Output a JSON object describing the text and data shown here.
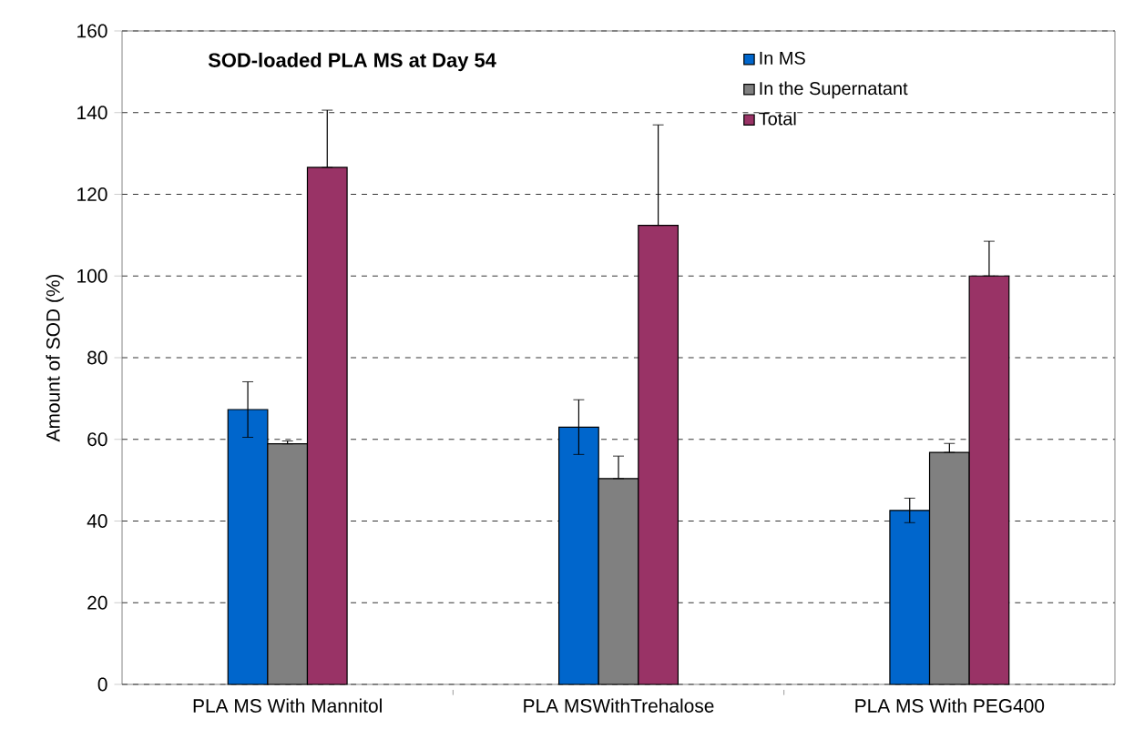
{
  "chart_data": {
    "type": "bar",
    "title": "SOD-loaded PLA MS at Day 54",
    "ylabel": "Amount of SOD (%)",
    "categories": [
      "PLA MS With Mannitol",
      "PLA MSWithTrehalose",
      "PLA MS With PEG400"
    ],
    "series": [
      {
        "name": "In MS",
        "color": "#0066cc",
        "values": [
          67.3,
          63,
          42.6
        ],
        "errors": [
          6.8,
          6.7,
          3
        ]
      },
      {
        "name": "In the Supernatant",
        "color": "#808080",
        "values": [
          58.9,
          50.4,
          56.8
        ],
        "errors": [
          [
            58.9,
            59.6
          ],
          [
            50.4,
            55.9
          ],
          [
            56.8,
            59
          ]
        ]
      },
      {
        "name": "Total",
        "color": "#993366",
        "values": [
          126.6,
          112.4,
          100
        ],
        "errors": [
          [
            126.6,
            140.6
          ],
          [
            112.4,
            137
          ],
          [
            100,
            108.5
          ]
        ]
      }
    ],
    "ylim": [
      0,
      160
    ],
    "yticks": [
      0,
      20,
      40,
      60,
      80,
      100,
      120,
      140,
      160
    ],
    "grid": "y",
    "legend": "top right"
  }
}
